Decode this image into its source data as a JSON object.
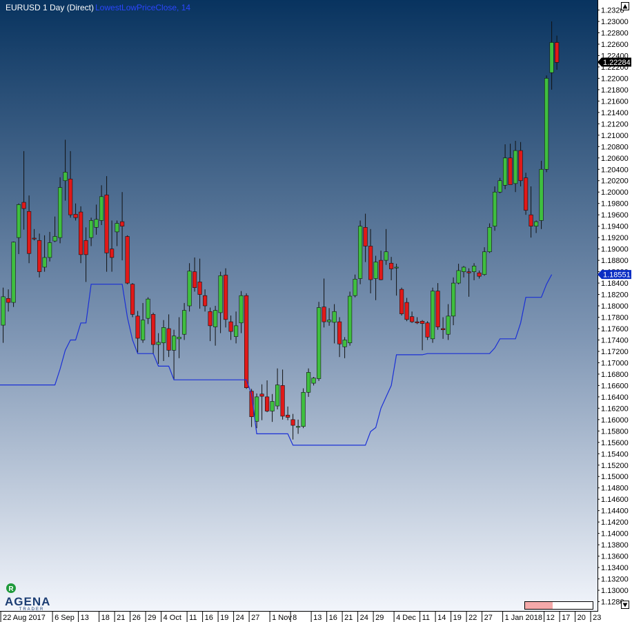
{
  "header": {
    "instrument": "EURUSD 1 Day (Direct)",
    "indicator": "LowestLowPriceClose, 14"
  },
  "logo": {
    "badge": "R",
    "brand": "AGENA",
    "sub": "TRADER"
  },
  "colors": {
    "bg_top": "#08335f",
    "bg_bottom": "#f2f5fb",
    "bull": "#3fbf3f",
    "bear": "#e01919",
    "wick": "#111111",
    "indicator": "#1a2fd6",
    "price_tag": "#000000",
    "indicator_tag": "#0a2dc4"
  },
  "chart_data": {
    "type": "candlestick",
    "instrument": "EURUSD 1 Day (Direct)",
    "y_ticks": [
      "1.2320",
      "1.23000",
      "1.22800",
      "1.22600",
      "1.22400",
      "1.22200",
      "1.22000",
      "1.21800",
      "1.21600",
      "1.21400",
      "1.21200",
      "1.21000",
      "1.20800",
      "1.20600",
      "1.20400",
      "1.20200",
      "1.20000",
      "1.19800",
      "1.19600",
      "1.19400",
      "1.19200",
      "1.19000",
      "1.18800",
      "1.18600",
      "1.18400",
      "1.18200",
      "1.18000",
      "1.17800",
      "1.17600",
      "1.17400",
      "1.17200",
      "1.17000",
      "1.16800",
      "1.16600",
      "1.16400",
      "1.16200",
      "1.16000",
      "1.15800",
      "1.15600",
      "1.15400",
      "1.15200",
      "1.15000",
      "1.14800",
      "1.14600",
      "1.14400",
      "1.14200",
      "1.14000",
      "1.13800",
      "1.13600",
      "1.13400",
      "1.13200",
      "1.13000",
      "1.1280"
    ],
    "ylim": [
      1.12685,
      1.2334
    ],
    "x_ticks": [
      {
        "i": 0,
        "label": "22 Aug 2017"
      },
      {
        "i": 10,
        "label": "6 Sep"
      },
      {
        "i": 15,
        "label": "13"
      },
      {
        "i": 19,
        "label": "18"
      },
      {
        "i": 22,
        "label": "21"
      },
      {
        "i": 25,
        "label": "26"
      },
      {
        "i": 28,
        "label": "29"
      },
      {
        "i": 31,
        "label": "4 Oct"
      },
      {
        "i": 36,
        "label": "11"
      },
      {
        "i": 39,
        "label": "16"
      },
      {
        "i": 42,
        "label": "19"
      },
      {
        "i": 45,
        "label": "24"
      },
      {
        "i": 48,
        "label": "27"
      },
      {
        "i": 52,
        "label": "1 Nov"
      },
      {
        "i": 56,
        "label": "8"
      },
      {
        "i": 60,
        "label": "13"
      },
      {
        "i": 63,
        "label": "16"
      },
      {
        "i": 66,
        "label": "21"
      },
      {
        "i": 69,
        "label": "24"
      },
      {
        "i": 72,
        "label": "29"
      },
      {
        "i": 76,
        "label": "4 Dec"
      },
      {
        "i": 81,
        "label": "11"
      },
      {
        "i": 84,
        "label": "14"
      },
      {
        "i": 87,
        "label": "19"
      },
      {
        "i": 90,
        "label": "22"
      },
      {
        "i": 93,
        "label": "27"
      },
      {
        "i": 97,
        "label": "1 Jan 2018"
      },
      {
        "i": 105,
        "label": "12"
      },
      {
        "i": 108,
        "label": "17"
      },
      {
        "i": 111,
        "label": "20"
      },
      {
        "i": 114,
        "label": "23"
      }
    ],
    "last_price": "1.22284",
    "indicator_last": "1.18551",
    "indicator_series": {
      "name": "LowestLowPriceClose, 14",
      "values": [
        1.1661,
        1.1661,
        1.1661,
        1.1661,
        1.1661,
        1.1661,
        1.1661,
        1.1661,
        1.1661,
        1.1661,
        1.1661,
        1.1689,
        1.1722,
        1.174,
        1.174,
        1.177,
        1.177,
        1.1838,
        1.1838,
        1.1838,
        1.1838,
        1.1838,
        1.1838,
        1.1838,
        1.178,
        1.174,
        1.1716,
        1.1716,
        1.1716,
        1.1716,
        1.1694,
        1.1694,
        1.1694,
        1.167,
        1.167,
        1.167,
        1.167,
        1.167,
        1.167,
        1.167,
        1.167,
        1.167,
        1.167,
        1.167,
        1.167,
        1.167,
        1.167,
        1.167,
        1.1645,
        1.1575,
        1.1575,
        1.1575,
        1.1575,
        1.1575,
        1.1575,
        1.1575,
        1.1555,
        1.1555,
        1.1555,
        1.1555,
        1.1555,
        1.1555,
        1.1555,
        1.1555,
        1.1555,
        1.1555,
        1.1555,
        1.1555,
        1.1555,
        1.1555,
        1.1555,
        1.1579,
        1.1586,
        1.162,
        1.164,
        1.166,
        1.1714,
        1.1714,
        1.1714,
        1.1714,
        1.1714,
        1.1714,
        1.1716,
        1.1716,
        1.1716,
        1.1716,
        1.1716,
        1.1716,
        1.1716,
        1.1716,
        1.1716,
        1.1716,
        1.1716,
        1.1716,
        1.1716,
        1.1726,
        1.1742,
        1.1742,
        1.1742,
        1.1742,
        1.177,
        1.1815,
        1.1815,
        1.1815,
        1.1815,
        1.1838,
        1.1855
      ]
    },
    "candles": [
      {
        "o": 1.1766,
        "h": 1.1832,
        "l": 1.1735,
        "c": 1.1816
      },
      {
        "o": 1.1813,
        "h": 1.1829,
        "l": 1.179,
        "c": 1.1806
      },
      {
        "o": 1.1806,
        "h": 1.1913,
        "l": 1.1798,
        "c": 1.1912
      },
      {
        "o": 1.192,
        "h": 1.198,
        "l": 1.1891,
        "c": 1.1978
      },
      {
        "o": 1.1982,
        "h": 1.2072,
        "l": 1.1934,
        "c": 1.1971
      },
      {
        "o": 1.1966,
        "h": 1.1994,
        "l": 1.1875,
        "c": 1.1892
      },
      {
        "o": 1.1919,
        "h": 1.1935,
        "l": 1.1915,
        "c": 1.1918
      },
      {
        "o": 1.1915,
        "h": 1.1927,
        "l": 1.185,
        "c": 1.186
      },
      {
        "o": 1.1868,
        "h": 1.1924,
        "l": 1.186,
        "c": 1.1885
      },
      {
        "o": 1.1885,
        "h": 1.193,
        "l": 1.1878,
        "c": 1.1911
      },
      {
        "o": 1.1914,
        "h": 1.1957,
        "l": 1.1912,
        "c": 1.1922
      },
      {
        "o": 1.192,
        "h": 1.2026,
        "l": 1.191,
        "c": 1.2008
      },
      {
        "o": 1.202,
        "h": 1.2092,
        "l": 1.1985,
        "c": 1.2035
      },
      {
        "o": 1.2023,
        "h": 1.2072,
        "l": 1.1955,
        "c": 1.196
      },
      {
        "o": 1.1961,
        "h": 1.198,
        "l": 1.195,
        "c": 1.1955
      },
      {
        "o": 1.1965,
        "h": 1.1975,
        "l": 1.1875,
        "c": 1.189
      },
      {
        "o": 1.1915,
        "h": 1.1938,
        "l": 1.1842,
        "c": 1.189
      },
      {
        "o": 1.192,
        "h": 1.1955,
        "l": 1.1905,
        "c": 1.195
      },
      {
        "o": 1.1938,
        "h": 1.1978,
        "l": 1.1925,
        "c": 1.1952
      },
      {
        "o": 1.195,
        "h": 1.2012,
        "l": 1.1942,
        "c": 1.1992
      },
      {
        "o": 1.1995,
        "h": 1.2028,
        "l": 1.186,
        "c": 1.1893
      },
      {
        "o": 1.19,
        "h": 1.195,
        "l": 1.186,
        "c": 1.1885
      },
      {
        "o": 1.193,
        "h": 1.195,
        "l": 1.1905,
        "c": 1.1945
      },
      {
        "o": 1.1948,
        "h": 1.2,
        "l": 1.188,
        "c": 1.194
      },
      {
        "o": 1.1922,
        "h": 1.1924,
        "l": 1.1838,
        "c": 1.184
      },
      {
        "o": 1.1838,
        "h": 1.184,
        "l": 1.178,
        "c": 1.1785
      },
      {
        "o": 1.1782,
        "h": 1.1791,
        "l": 1.1718,
        "c": 1.1743
      },
      {
        "o": 1.174,
        "h": 1.1805,
        "l": 1.1735,
        "c": 1.1775
      },
      {
        "o": 1.1778,
        "h": 1.1815,
        "l": 1.1768,
        "c": 1.1812
      },
      {
        "o": 1.1785,
        "h": 1.1788,
        "l": 1.1715,
        "c": 1.1732
      },
      {
        "o": 1.1732,
        "h": 1.1752,
        "l": 1.1698,
        "c": 1.1736
      },
      {
        "o": 1.1735,
        "h": 1.1775,
        "l": 1.1703,
        "c": 1.1762
      },
      {
        "o": 1.176,
        "h": 1.1785,
        "l": 1.171,
        "c": 1.1722
      },
      {
        "o": 1.1722,
        "h": 1.1758,
        "l": 1.167,
        "c": 1.1747
      },
      {
        "o": 1.1742,
        "h": 1.178,
        "l": 1.1708,
        "c": 1.1745
      },
      {
        "o": 1.175,
        "h": 1.1805,
        "l": 1.174,
        "c": 1.1792
      },
      {
        "o": 1.18,
        "h": 1.1875,
        "l": 1.179,
        "c": 1.1861
      },
      {
        "o": 1.186,
        "h": 1.1885,
        "l": 1.1825,
        "c": 1.1832
      },
      {
        "o": 1.1842,
        "h": 1.1883,
        "l": 1.1795,
        "c": 1.182
      },
      {
        "o": 1.1818,
        "h": 1.1829,
        "l": 1.179,
        "c": 1.18
      },
      {
        "o": 1.179,
        "h": 1.1797,
        "l": 1.1738,
        "c": 1.1765
      },
      {
        "o": 1.1763,
        "h": 1.18,
        "l": 1.173,
        "c": 1.1792
      },
      {
        "o": 1.1788,
        "h": 1.186,
        "l": 1.1752,
        "c": 1.1853
      },
      {
        "o": 1.1854,
        "h": 1.1866,
        "l": 1.1762,
        "c": 1.1776
      },
      {
        "o": 1.1772,
        "h": 1.1783,
        "l": 1.174,
        "c": 1.1755
      },
      {
        "o": 1.1746,
        "h": 1.179,
        "l": 1.1734,
        "c": 1.1765
      },
      {
        "o": 1.177,
        "h": 1.1826,
        "l": 1.1752,
        "c": 1.1818
      },
      {
        "o": 1.1818,
        "h": 1.1822,
        "l": 1.1654,
        "c": 1.1656
      },
      {
        "o": 1.165,
        "h": 1.1654,
        "l": 1.1587,
        "c": 1.1605
      },
      {
        "o": 1.1597,
        "h": 1.1646,
        "l": 1.1585,
        "c": 1.164
      },
      {
        "o": 1.1645,
        "h": 1.1662,
        "l": 1.1599,
        "c": 1.1641
      },
      {
        "o": 1.164,
        "h": 1.1669,
        "l": 1.1613,
        "c": 1.1615
      },
      {
        "o": 1.1615,
        "h": 1.1645,
        "l": 1.1596,
        "c": 1.1632
      },
      {
        "o": 1.1624,
        "h": 1.169,
        "l": 1.1618,
        "c": 1.1661
      },
      {
        "o": 1.166,
        "h": 1.1688,
        "l": 1.16,
        "c": 1.1606
      },
      {
        "o": 1.1608,
        "h": 1.1623,
        "l": 1.1599,
        "c": 1.1604
      },
      {
        "o": 1.16,
        "h": 1.161,
        "l": 1.1565,
        "c": 1.159
      },
      {
        "o": 1.1588,
        "h": 1.16,
        "l": 1.1575,
        "c": 1.1588
      },
      {
        "o": 1.1588,
        "h": 1.1655,
        "l": 1.1585,
        "c": 1.1648
      },
      {
        "o": 1.1648,
        "h": 1.169,
        "l": 1.164,
        "c": 1.1683
      },
      {
        "o": 1.1664,
        "h": 1.1675,
        "l": 1.166,
        "c": 1.1673
      },
      {
        "o": 1.1672,
        "h": 1.1807,
        "l": 1.1668,
        "c": 1.1797
      },
      {
        "o": 1.1798,
        "h": 1.1848,
        "l": 1.1762,
        "c": 1.1772
      },
      {
        "o": 1.1772,
        "h": 1.1796,
        "l": 1.1765,
        "c": 1.1775
      },
      {
        "o": 1.1771,
        "h": 1.1803,
        "l": 1.1734,
        "c": 1.179
      },
      {
        "o": 1.1772,
        "h": 1.178,
        "l": 1.171,
        "c": 1.1733
      },
      {
        "o": 1.1728,
        "h": 1.1745,
        "l": 1.1708,
        "c": 1.174
      },
      {
        "o": 1.1735,
        "h": 1.1825,
        "l": 1.173,
        "c": 1.1817
      },
      {
        "o": 1.1818,
        "h": 1.1855,
        "l": 1.1815,
        "c": 1.1847
      },
      {
        "o": 1.1848,
        "h": 1.195,
        "l": 1.1838,
        "c": 1.194
      },
      {
        "o": 1.1938,
        "h": 1.1962,
        "l": 1.1877,
        "c": 1.1905
      },
      {
        "o": 1.1905,
        "h": 1.1935,
        "l": 1.1822,
        "c": 1.1846
      },
      {
        "o": 1.1848,
        "h": 1.1888,
        "l": 1.181,
        "c": 1.1877
      },
      {
        "o": 1.188,
        "h": 1.1897,
        "l": 1.1845,
        "c": 1.1846
      },
      {
        "o": 1.188,
        "h": 1.1935,
        "l": 1.1872,
        "c": 1.1895
      },
      {
        "o": 1.1875,
        "h": 1.1886,
        "l": 1.1845,
        "c": 1.1865
      },
      {
        "o": 1.1868,
        "h": 1.1874,
        "l": 1.1818,
        "c": 1.1868
      },
      {
        "o": 1.1829,
        "h": 1.1832,
        "l": 1.1783,
        "c": 1.1786
      },
      {
        "o": 1.1806,
        "h": 1.1814,
        "l": 1.1773,
        "c": 1.1776
      },
      {
        "o": 1.1781,
        "h": 1.179,
        "l": 1.177,
        "c": 1.1772
      },
      {
        "o": 1.1772,
        "h": 1.178,
        "l": 1.1768,
        "c": 1.177
      },
      {
        "o": 1.1773,
        "h": 1.1775,
        "l": 1.1722,
        "c": 1.1769
      },
      {
        "o": 1.177,
        "h": 1.1773,
        "l": 1.174,
        "c": 1.1745
      },
      {
        "o": 1.1742,
        "h": 1.1832,
        "l": 1.1735,
        "c": 1.1826
      },
      {
        "o": 1.1826,
        "h": 1.184,
        "l": 1.1758,
        "c": 1.1763
      },
      {
        "o": 1.176,
        "h": 1.178,
        "l": 1.1742,
        "c": 1.1758
      },
      {
        "o": 1.175,
        "h": 1.1803,
        "l": 1.174,
        "c": 1.1782
      },
      {
        "o": 1.1782,
        "h": 1.185,
        "l": 1.1766,
        "c": 1.184
      },
      {
        "o": 1.184,
        "h": 1.1874,
        "l": 1.1838,
        "c": 1.1862
      },
      {
        "o": 1.186,
        "h": 1.187,
        "l": 1.185,
        "c": 1.1868
      },
      {
        "o": 1.186,
        "h": 1.1866,
        "l": 1.1816,
        "c": 1.1858
      },
      {
        "o": 1.186,
        "h": 1.1875,
        "l": 1.1845,
        "c": 1.187
      },
      {
        "o": 1.1858,
        "h": 1.1862,
        "l": 1.1848,
        "c": 1.1852
      },
      {
        "o": 1.1855,
        "h": 1.1903,
        "l": 1.1853,
        "c": 1.1895
      },
      {
        "o": 1.1895,
        "h": 1.1945,
        "l": 1.1893,
        "c": 1.1938
      },
      {
        "o": 1.194,
        "h": 1.201,
        "l": 1.1932,
        "c": 1.2
      },
      {
        "o": 1.2,
        "h": 1.2025,
        "l": 1.1998,
        "c": 1.202
      },
      {
        "o": 1.2012,
        "h": 1.2084,
        "l": 1.2005,
        "c": 1.206
      },
      {
        "o": 1.206,
        "h": 1.2085,
        "l": 1.2015,
        "c": 1.2013
      },
      {
        "o": 1.2015,
        "h": 1.209,
        "l": 1.2,
        "c": 1.2073
      },
      {
        "o": 1.2073,
        "h": 1.2088,
        "l": 1.201,
        "c": 1.202
      },
      {
        "o": 1.2025,
        "h": 1.2034,
        "l": 1.196,
        "c": 1.1968
      },
      {
        "o": 1.196,
        "h": 1.201,
        "l": 1.192,
        "c": 1.194
      },
      {
        "o": 1.194,
        "h": 1.195,
        "l": 1.1928,
        "c": 1.1948
      },
      {
        "o": 1.195,
        "h": 1.2055,
        "l": 1.1935,
        "c": 1.204
      },
      {
        "o": 1.204,
        "h": 1.2205,
        "l": 1.2035,
        "c": 1.22
      },
      {
        "o": 1.221,
        "h": 1.23,
        "l": 1.218,
        "c": 1.2263
      },
      {
        "o": 1.2263,
        "h": 1.2275,
        "l": 1.2215,
        "c": 1.2228
      }
    ]
  }
}
